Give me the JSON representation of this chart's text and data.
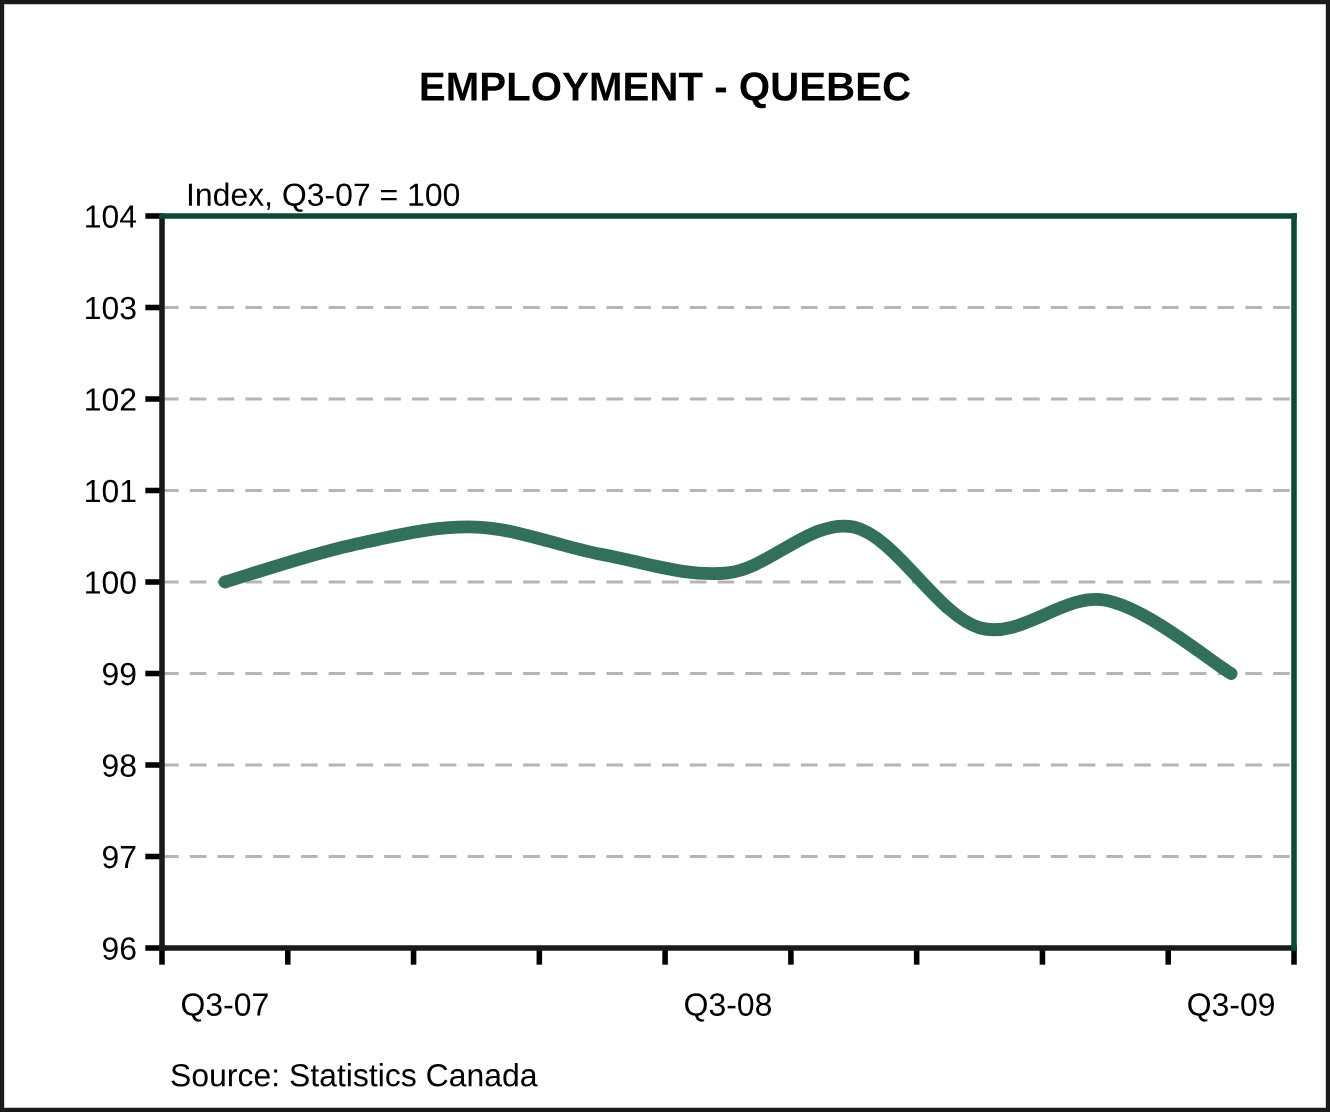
{
  "chart_data": {
    "type": "line",
    "title": "EMPLOYMENT - QUEBEC",
    "ylabel": "Index, Q3-07 = 100",
    "annotations": [
      "Source: Statistics Canada"
    ],
    "categories": [
      "Q3-07",
      null,
      null,
      null,
      "Q3-08",
      null,
      null,
      null,
      "Q3-09"
    ],
    "series": [
      {
        "color": "#33705a",
        "values": [
          100.0,
          100.4,
          100.6,
          100.3,
          100.1,
          100.6,
          99.5,
          99.8,
          99.0
        ]
      }
    ],
    "ylim": [
      96,
      104
    ],
    "yticks": [
      96,
      97,
      98,
      99,
      100,
      101,
      102,
      103,
      104
    ],
    "grid": "y",
    "line_style": "solid"
  }
}
